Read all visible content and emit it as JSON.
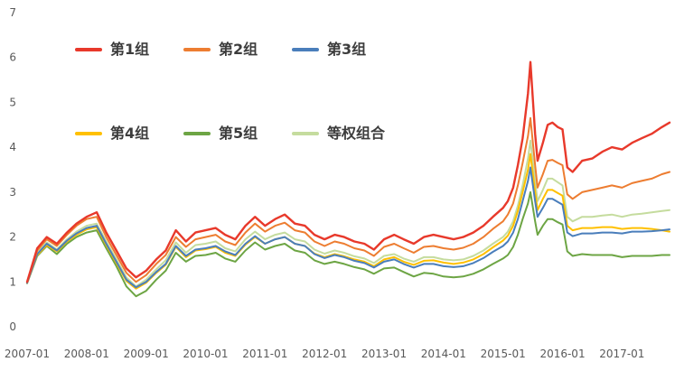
{
  "chart_data": {
    "type": "line",
    "title": "",
    "xlabel": "",
    "ylabel": "",
    "x_range": [
      2007.0,
      2017.83
    ],
    "ylim": [
      0,
      7
    ],
    "grid": false,
    "legend_position": "inside-top-left-two-rows",
    "yticks": [
      0,
      1,
      2,
      3,
      4,
      5,
      6,
      7
    ],
    "xticks": [
      {
        "t": 2007.0,
        "label": "2007-01"
      },
      {
        "t": 2008.0,
        "label": "2008-01"
      },
      {
        "t": 2009.0,
        "label": "2009-01"
      },
      {
        "t": 2010.0,
        "label": "2010-01"
      },
      {
        "t": 2011.0,
        "label": "2011-01"
      },
      {
        "t": 2012.0,
        "label": "2012-01"
      },
      {
        "t": 2013.0,
        "label": "2013-01"
      },
      {
        "t": 2014.0,
        "label": "2014-01"
      },
      {
        "t": 2015.0,
        "label": "2015-01"
      },
      {
        "t": 2016.0,
        "label": "2016-01"
      },
      {
        "t": 2017.0,
        "label": "2017-01"
      }
    ],
    "x": [
      2007.0,
      2007.17,
      2007.33,
      2007.5,
      2007.67,
      2007.83,
      2008.0,
      2008.17,
      2008.33,
      2008.5,
      2008.67,
      2008.83,
      2009.0,
      2009.17,
      2009.33,
      2009.5,
      2009.67,
      2009.83,
      2010.0,
      2010.17,
      2010.33,
      2010.5,
      2010.67,
      2010.83,
      2011.0,
      2011.17,
      2011.33,
      2011.5,
      2011.67,
      2011.83,
      2012.0,
      2012.17,
      2012.33,
      2012.5,
      2012.67,
      2012.83,
      2013.0,
      2013.17,
      2013.33,
      2013.5,
      2013.67,
      2013.83,
      2014.0,
      2014.17,
      2014.33,
      2014.5,
      2014.67,
      2014.83,
      2015.0,
      2015.08,
      2015.17,
      2015.25,
      2015.33,
      2015.42,
      2015.46,
      2015.54,
      2015.58,
      2015.67,
      2015.75,
      2015.83,
      2015.92,
      2016.0,
      2016.08,
      2016.17,
      2016.33,
      2016.5,
      2016.67,
      2016.83,
      2017.0,
      2017.17,
      2017.33,
      2017.5,
      2017.67,
      2017.8
    ],
    "series": [
      {
        "key": "group-1",
        "name": "第1组",
        "color": "#e8392b",
        "width": 2.4,
        "values": [
          1.0,
          1.75,
          2.0,
          1.85,
          2.1,
          2.3,
          2.45,
          2.55,
          2.1,
          1.7,
          1.3,
          1.1,
          1.25,
          1.5,
          1.7,
          2.15,
          1.9,
          2.1,
          2.15,
          2.2,
          2.05,
          1.95,
          2.25,
          2.45,
          2.25,
          2.4,
          2.5,
          2.3,
          2.25,
          2.05,
          1.95,
          2.05,
          2.0,
          1.9,
          1.85,
          1.72,
          1.95,
          2.05,
          1.95,
          1.85,
          2.0,
          2.05,
          2.0,
          1.95,
          2.0,
          2.1,
          2.25,
          2.45,
          2.65,
          2.8,
          3.1,
          3.6,
          4.2,
          5.2,
          5.9,
          4.3,
          3.7,
          4.1,
          4.5,
          4.55,
          4.45,
          4.4,
          3.55,
          3.45,
          3.7,
          3.75,
          3.9,
          4.0,
          3.95,
          4.1,
          4.2,
          4.3,
          4.45,
          4.55
        ]
      },
      {
        "key": "group-2",
        "name": "第2组",
        "color": "#ed7d31",
        "width": 2,
        "values": [
          1.0,
          1.7,
          1.95,
          1.8,
          2.05,
          2.25,
          2.4,
          2.45,
          2.0,
          1.6,
          1.2,
          1.0,
          1.15,
          1.4,
          1.6,
          2.0,
          1.78,
          1.95,
          2.0,
          2.05,
          1.9,
          1.82,
          2.1,
          2.3,
          2.12,
          2.25,
          2.32,
          2.15,
          2.1,
          1.9,
          1.8,
          1.9,
          1.85,
          1.75,
          1.7,
          1.58,
          1.78,
          1.85,
          1.75,
          1.65,
          1.78,
          1.8,
          1.75,
          1.72,
          1.76,
          1.85,
          2.0,
          2.18,
          2.35,
          2.5,
          2.75,
          3.15,
          3.65,
          4.25,
          4.65,
          3.6,
          3.1,
          3.4,
          3.7,
          3.72,
          3.65,
          3.6,
          2.95,
          2.85,
          3.0,
          3.05,
          3.1,
          3.15,
          3.1,
          3.2,
          3.25,
          3.3,
          3.4,
          3.45
        ]
      },
      {
        "key": "group-3",
        "name": "第3组",
        "color": "#4a7ebb",
        "width": 2,
        "values": [
          0.98,
          1.62,
          1.85,
          1.7,
          1.92,
          2.08,
          2.2,
          2.25,
          1.85,
          1.45,
          1.05,
          0.88,
          1.0,
          1.22,
          1.4,
          1.8,
          1.58,
          1.72,
          1.75,
          1.8,
          1.68,
          1.6,
          1.85,
          2.02,
          1.85,
          1.95,
          2.0,
          1.85,
          1.8,
          1.62,
          1.53,
          1.6,
          1.55,
          1.47,
          1.42,
          1.32,
          1.45,
          1.5,
          1.4,
          1.32,
          1.4,
          1.4,
          1.35,
          1.33,
          1.35,
          1.42,
          1.53,
          1.67,
          1.8,
          1.9,
          2.1,
          2.4,
          2.8,
          3.25,
          3.55,
          2.8,
          2.45,
          2.65,
          2.85,
          2.85,
          2.78,
          2.72,
          2.1,
          2.02,
          2.08,
          2.08,
          2.1,
          2.1,
          2.08,
          2.12,
          2.12,
          2.13,
          2.15,
          2.17
        ]
      },
      {
        "key": "group-4",
        "name": "第4组",
        "color": "#ffc000",
        "width": 2,
        "values": [
          0.98,
          1.6,
          1.82,
          1.68,
          1.9,
          2.05,
          2.17,
          2.22,
          1.82,
          1.42,
          1.02,
          0.85,
          0.98,
          1.2,
          1.38,
          1.78,
          1.55,
          1.7,
          1.73,
          1.78,
          1.65,
          1.58,
          1.83,
          2.0,
          1.85,
          1.95,
          2.0,
          1.85,
          1.8,
          1.63,
          1.55,
          1.62,
          1.57,
          1.5,
          1.45,
          1.35,
          1.5,
          1.55,
          1.45,
          1.38,
          1.47,
          1.48,
          1.43,
          1.4,
          1.43,
          1.5,
          1.62,
          1.77,
          1.92,
          2.03,
          2.25,
          2.58,
          3.0,
          3.5,
          3.85,
          3.0,
          2.6,
          2.85,
          3.05,
          3.05,
          2.98,
          2.92,
          2.25,
          2.15,
          2.2,
          2.2,
          2.22,
          2.22,
          2.18,
          2.2,
          2.2,
          2.18,
          2.15,
          2.12
        ]
      },
      {
        "key": "group-5",
        "name": "第5组",
        "color": "#6da544",
        "width": 2,
        "values": [
          0.97,
          1.58,
          1.8,
          1.62,
          1.85,
          2.0,
          2.1,
          2.15,
          1.75,
          1.35,
          0.9,
          0.68,
          0.8,
          1.05,
          1.25,
          1.65,
          1.45,
          1.58,
          1.6,
          1.65,
          1.52,
          1.45,
          1.7,
          1.88,
          1.72,
          1.8,
          1.85,
          1.7,
          1.65,
          1.48,
          1.4,
          1.45,
          1.4,
          1.33,
          1.28,
          1.18,
          1.3,
          1.32,
          1.22,
          1.12,
          1.2,
          1.18,
          1.12,
          1.1,
          1.12,
          1.18,
          1.28,
          1.4,
          1.52,
          1.6,
          1.78,
          2.05,
          2.4,
          2.75,
          3.0,
          2.35,
          2.05,
          2.25,
          2.4,
          2.4,
          2.33,
          2.28,
          1.68,
          1.58,
          1.62,
          1.6,
          1.6,
          1.6,
          1.55,
          1.58,
          1.58,
          1.58,
          1.6,
          1.6
        ]
      },
      {
        "key": "equal-weight",
        "name": "等权组合",
        "color": "#c5dc9e",
        "width": 2,
        "values": [
          0.99,
          1.65,
          1.88,
          1.72,
          1.95,
          2.12,
          2.25,
          2.3,
          1.9,
          1.5,
          1.1,
          0.9,
          1.05,
          1.28,
          1.48,
          1.88,
          1.65,
          1.82,
          1.85,
          1.9,
          1.75,
          1.68,
          1.95,
          2.12,
          1.95,
          2.05,
          2.1,
          1.95,
          1.9,
          1.72,
          1.63,
          1.7,
          1.65,
          1.57,
          1.52,
          1.42,
          1.58,
          1.62,
          1.52,
          1.45,
          1.55,
          1.55,
          1.5,
          1.48,
          1.5,
          1.58,
          1.7,
          1.85,
          2.0,
          2.12,
          2.35,
          2.7,
          3.15,
          3.75,
          4.15,
          3.25,
          2.8,
          3.05,
          3.3,
          3.3,
          3.22,
          3.15,
          2.45,
          2.35,
          2.45,
          2.45,
          2.48,
          2.5,
          2.45,
          2.5,
          2.52,
          2.55,
          2.58,
          2.6
        ]
      }
    ],
    "legend": {
      "rows": [
        [
          0,
          1,
          2
        ],
        [
          3,
          4,
          5
        ]
      ]
    }
  },
  "style": {
    "axis_text_color": "#595959",
    "legend_text_color": "#3c3c3c",
    "background": "#ffffff"
  }
}
